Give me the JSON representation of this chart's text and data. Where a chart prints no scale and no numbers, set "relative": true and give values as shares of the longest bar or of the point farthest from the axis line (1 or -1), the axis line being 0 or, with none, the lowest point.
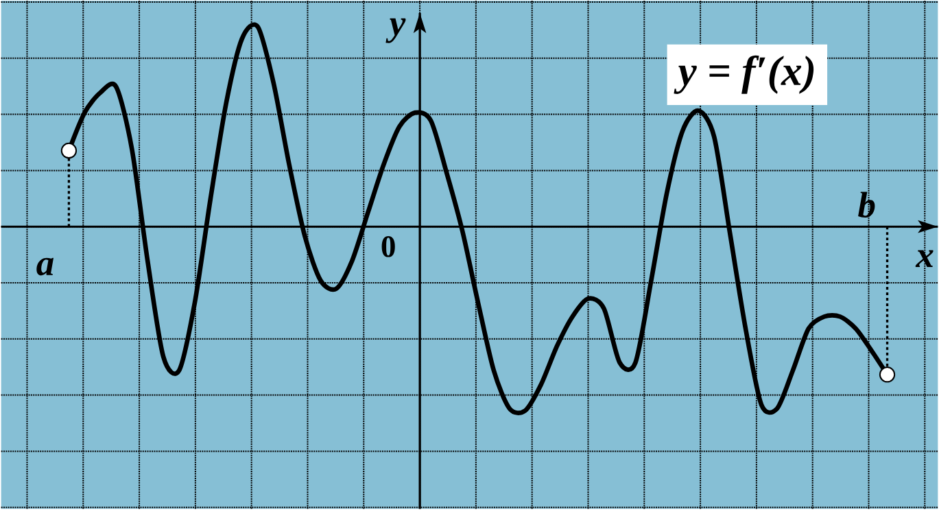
{
  "chart_data": {
    "type": "line",
    "relative": true,
    "xlabel": "x",
    "ylabel": "y",
    "color": "#000000",
    "grid": true,
    "categories": [
      null,
      null,
      null,
      null,
      null,
      null,
      null,
      null,
      null,
      null,
      null,
      null,
      null,
      null,
      null,
      null,
      null,
      null,
      null,
      null,
      null,
      null,
      null,
      null,
      null,
      null,
      null,
      null,
      null,
      null,
      null,
      null,
      null,
      null,
      null,
      null,
      null,
      null,
      null,
      null,
      null,
      null,
      null,
      null,
      null,
      null,
      null,
      null,
      null,
      null,
      null,
      null,
      null
    ],
    "values": [
      0.38,
      0.57,
      0.67,
      0.7,
      0.39,
      -0.17,
      -0.65,
      -0.72,
      -0.38,
      0.14,
      0.62,
      0.94,
      1.0,
      0.72,
      0.31,
      -0.05,
      -0.27,
      -0.31,
      -0.17,
      0.07,
      0.31,
      0.5,
      0.57,
      0.53,
      0.27,
      -0.02,
      -0.38,
      -0.72,
      -0.91,
      -0.92,
      -0.79,
      -0.6,
      -0.45,
      -0.36,
      -0.41,
      -0.68,
      -0.68,
      -0.27,
      0.17,
      0.48,
      0.58,
      0.45,
      -0.03,
      -0.51,
      -0.89,
      -0.91,
      -0.72,
      -0.51,
      -0.45,
      -0.45,
      -0.51,
      -0.62,
      -0.74
    ],
    "annotations": [
      "y = f′(x)",
      "a",
      "b",
      "0"
    ]
  }
}
